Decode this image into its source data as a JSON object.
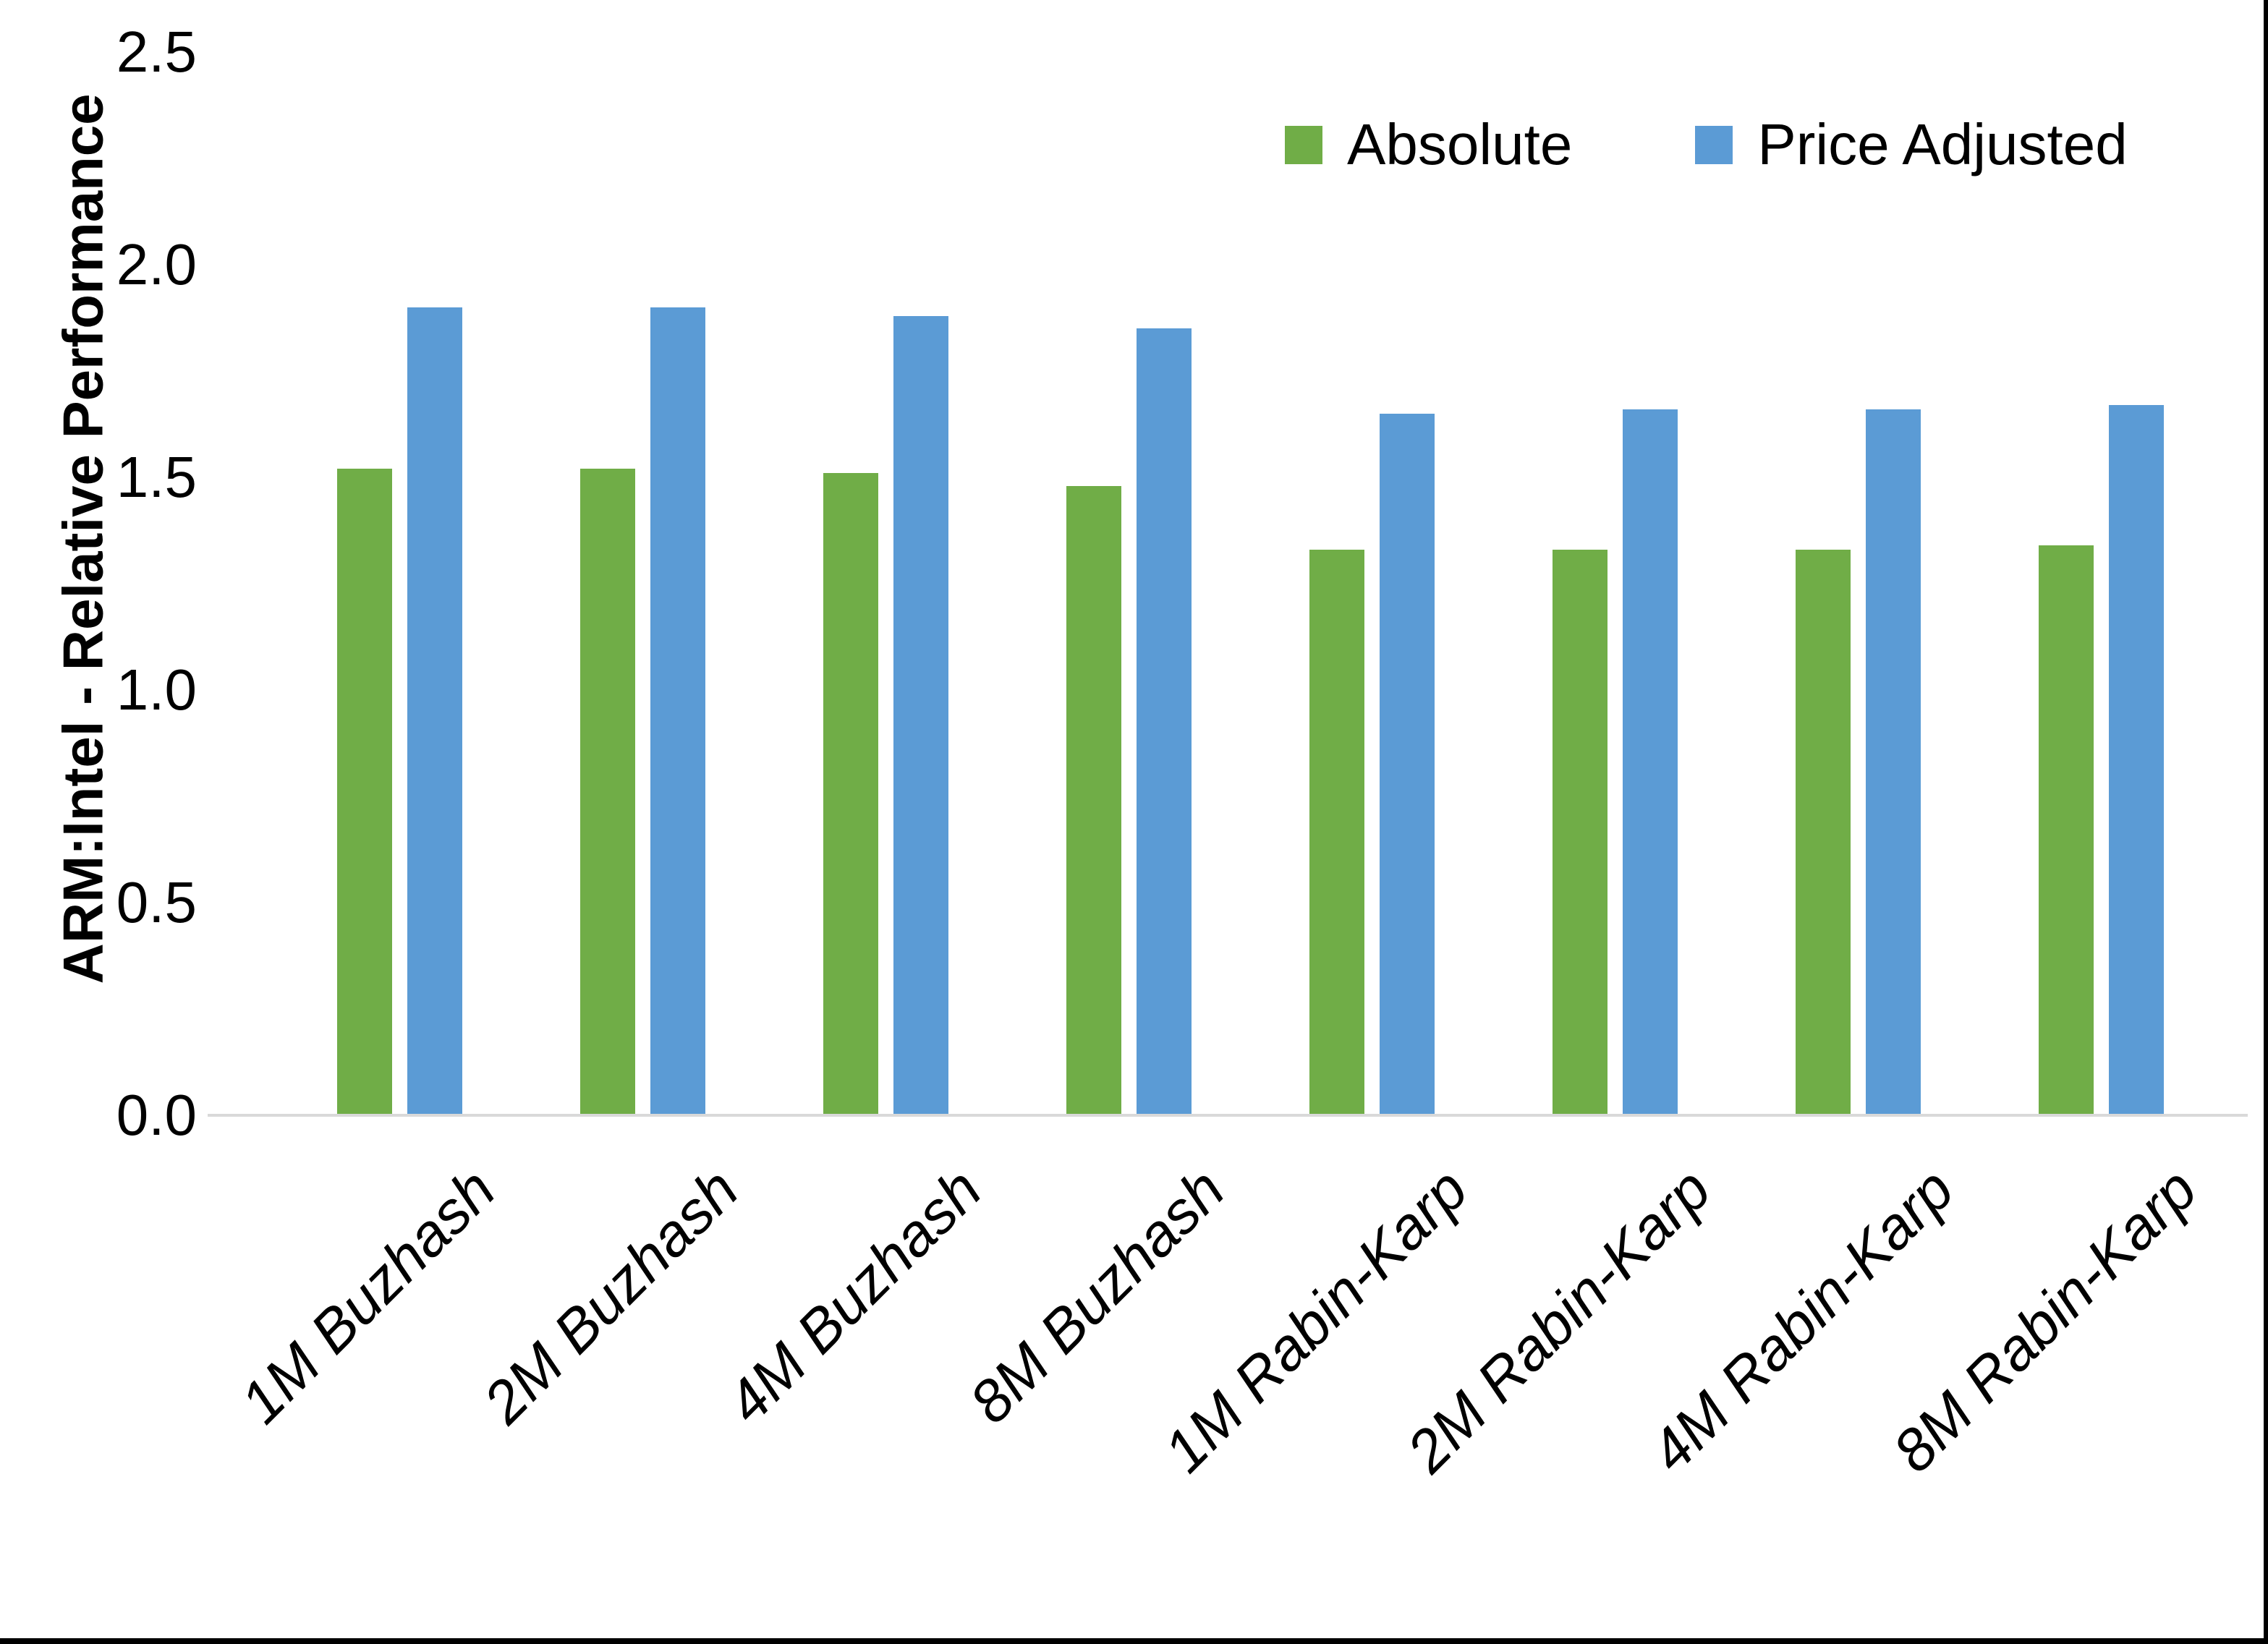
{
  "chart_data": {
    "type": "bar",
    "title": "",
    "ylabel": "ARM:Intel - Relative Performance",
    "xlabel": "",
    "ylim": [
      0,
      2.5
    ],
    "ytick_step": 0.5,
    "yticks": [
      "0.0",
      "0.5",
      "1.0",
      "1.5",
      "2.0",
      "2.5"
    ],
    "grid": false,
    "legend_position": "top-right",
    "categories": [
      "1M Buzhash",
      "2M Buzhash",
      "4M Buzhash",
      "8M Buzhash",
      "1M Rabin-Karp",
      "2M Rabin-Karp",
      "4M Rabin-Karp",
      "8M Rabin-Karp"
    ],
    "series": [
      {
        "name": "Absolute",
        "color": "#70AD47",
        "values": [
          1.52,
          1.52,
          1.51,
          1.48,
          1.33,
          1.33,
          1.33,
          1.34
        ]
      },
      {
        "name": "Price Adjusted",
        "color": "#5B9BD5",
        "values": [
          1.9,
          1.9,
          1.88,
          1.85,
          1.65,
          1.66,
          1.66,
          1.67
        ]
      }
    ]
  },
  "colors": {
    "background": "#ffffff",
    "axis_line": "#d9d9d9",
    "text": "#000000",
    "frame_border": "#000000"
  }
}
